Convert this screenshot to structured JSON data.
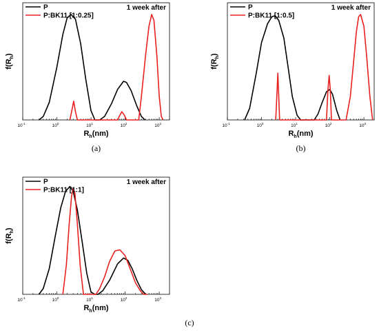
{
  "chart_data": [
    {
      "type": "line",
      "panel_label": "(a)",
      "annotation": "1 week after",
      "xlabel_main": "R",
      "xlabel_sub": "h",
      "xlabel_unit": "(nm)",
      "ylabel_main": "f(R",
      "ylabel_sub": "h",
      "ylabel_close": ")",
      "xscale": "log",
      "xlim": [
        0.1,
        2000
      ],
      "ylim": [
        0,
        1.0
      ],
      "xticks": [
        "10",
        "10",
        "10",
        "10",
        "10"
      ],
      "xtick_exps": [
        "-1",
        "0",
        "1",
        "2",
        "3"
      ],
      "legend": "top-left",
      "series": [
        {
          "name": "P",
          "color": "#000000",
          "x": [
            0.3,
            0.4,
            0.6,
            1,
            1.5,
            2,
            2.6,
            3.5,
            5,
            7,
            10,
            13,
            15,
            18,
            25,
            40,
            60,
            90,
            110,
            150,
            220,
            300,
            380
          ],
          "y": [
            0,
            0.03,
            0.15,
            0.45,
            0.73,
            0.87,
            0.9,
            0.86,
            0.65,
            0.35,
            0.08,
            0.0,
            0,
            0,
            0.03,
            0.14,
            0.26,
            0.33,
            0.32,
            0.25,
            0.12,
            0.03,
            0
          ]
        },
        {
          "name": "P:BK11 [1:0.25]",
          "color": "#e8201e",
          "x": [
            2.4,
            2.7,
            3.1,
            3.5,
            4.0,
            60,
            70,
            80,
            95,
            110,
            250,
            300,
            400,
            500,
            600,
            700,
            850,
            1000,
            1150,
            1300
          ],
          "y": [
            0,
            0.07,
            0.16,
            0.07,
            0,
            0,
            0.04,
            0.07,
            0.04,
            0,
            0,
            0.2,
            0.56,
            0.8,
            0.9,
            0.85,
            0.55,
            0.2,
            0.03,
            0
          ]
        }
      ]
    },
    {
      "type": "line",
      "panel_label": "(b)",
      "annotation": "1 week after",
      "xlabel_main": "R",
      "xlabel_sub": "h",
      "xlabel_unit": "(nm)",
      "ylabel_main": "f(R",
      "ylabel_sub": "h",
      "ylabel_close": ")",
      "xscale": "log",
      "xlim": [
        0.1,
        2000
      ],
      "ylim": [
        0,
        1.0
      ],
      "xticks": [
        "10",
        "10",
        "10",
        "10",
        "10"
      ],
      "xtick_exps": [
        "-1",
        "0",
        "1",
        "2",
        "3"
      ],
      "legend": "top-left",
      "series": [
        {
          "name": "P",
          "color": "#000000",
          "x": [
            0.32,
            0.45,
            0.7,
            1,
            1.5,
            2,
            2.5,
            3.2,
            4.5,
            6,
            8,
            11,
            14,
            35,
            45,
            60,
            80,
            100,
            120,
            160,
            200
          ],
          "y": [
            0,
            0.1,
            0.4,
            0.66,
            0.82,
            0.88,
            0.89,
            0.85,
            0.7,
            0.45,
            0.2,
            0.04,
            0,
            0,
            0.05,
            0.15,
            0.24,
            0.26,
            0.22,
            0.08,
            0
          ]
        },
        {
          "name": "P:BK11 [1:0.5]",
          "color": "#e8201e",
          "x": [
            2.6,
            2.8,
            3.0,
            3.2,
            3.4,
            80,
            88,
            96,
            104,
            112,
            300,
            400,
            500,
            600,
            700,
            800,
            1000,
            1200,
            1500,
            1800
          ],
          "y": [
            0,
            0.2,
            0.4,
            0.2,
            0,
            0,
            0.25,
            0.38,
            0.25,
            0,
            0,
            0.2,
            0.5,
            0.75,
            0.88,
            0.9,
            0.8,
            0.55,
            0.2,
            0
          ]
        }
      ]
    },
    {
      "type": "line",
      "panel_label": "(c)",
      "annotation": "1 week after",
      "xlabel_main": "R",
      "xlabel_sub": "h",
      "xlabel_unit": "(nm)",
      "ylabel_main": "f(R",
      "ylabel_sub": "h",
      "ylabel_close": ")",
      "xscale": "log",
      "xlim": [
        0.1,
        2000
      ],
      "ylim": [
        0,
        1.0
      ],
      "xticks": [
        "10",
        "10",
        "10",
        "10",
        "10"
      ],
      "xtick_exps": [
        "-1",
        "0",
        "1",
        "2",
        "3"
      ],
      "legend": "top-left",
      "series": [
        {
          "name": "P",
          "color": "#000000",
          "x": [
            0.3,
            0.4,
            0.6,
            0.9,
            1.3,
            1.8,
            2.4,
            3,
            4,
            5.5,
            7.5,
            10,
            13,
            16,
            22,
            35,
            60,
            90,
            120,
            160,
            220,
            300,
            400
          ],
          "y": [
            0,
            0.05,
            0.22,
            0.5,
            0.74,
            0.88,
            0.92,
            0.88,
            0.72,
            0.45,
            0.18,
            0.02,
            0,
            0,
            0.03,
            0.12,
            0.26,
            0.31,
            0.29,
            0.22,
            0.12,
            0.04,
            0
          ]
        },
        {
          "name": "P:BK11 [1:1]",
          "color": "#e8201e",
          "x": [
            1.5,
            1.9,
            2.3,
            2.7,
            3.0,
            3.4,
            4.0,
            4.8,
            6.0,
            7.5,
            14,
            18,
            25,
            35,
            50,
            70,
            100,
            140,
            200,
            280,
            350,
            450
          ],
          "y": [
            0,
            0.25,
            0.6,
            0.84,
            0.9,
            0.86,
            0.6,
            0.25,
            0,
            0,
            0,
            0.05,
            0.15,
            0.28,
            0.37,
            0.38,
            0.33,
            0.22,
            0.1,
            0.03,
            0,
            0
          ]
        }
      ]
    }
  ]
}
